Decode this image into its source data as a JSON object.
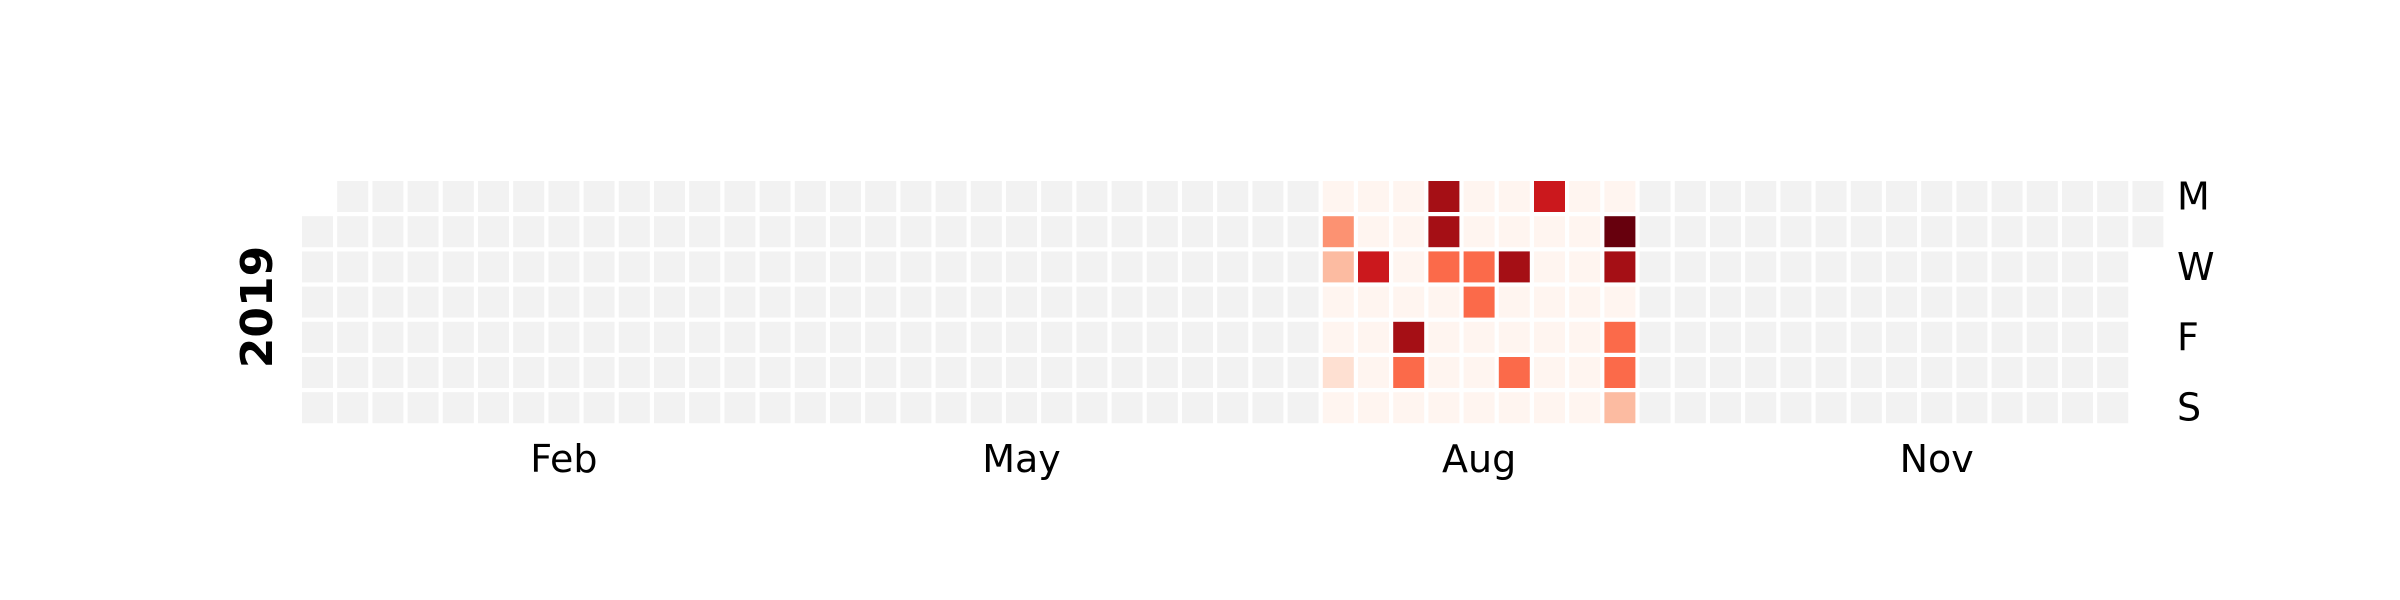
{
  "chart_data": {
    "type": "heatmap",
    "year_label": "2019",
    "month_labels": [
      {
        "label": "Feb",
        "week": 7
      },
      {
        "label": "May",
        "week": 20
      },
      {
        "label": "Aug",
        "week": 33
      },
      {
        "label": "Nov",
        "week": 46
      }
    ],
    "weekday_labels": [
      {
        "label": "M",
        "day": 0
      },
      {
        "label": "W",
        "day": 2
      },
      {
        "label": "F",
        "day": 4
      },
      {
        "label": "S",
        "day": 6
      }
    ],
    "n_weeks": 53,
    "first_week_start_day": 1,
    "last_week_end_day": 1,
    "colors": {
      "empty": "#f2f2f2",
      "scale": [
        "#fff5f0",
        "#fee0d2",
        "#fcbba1",
        "#fc9272",
        "#fb6a4a",
        "#ef3b2c",
        "#cb181d",
        "#a50f15",
        "#67000d"
      ]
    },
    "active_weeks": [
      29,
      30,
      31,
      32,
      33,
      34,
      35,
      36,
      37
    ],
    "values": [
      {
        "week": 29,
        "day": 1,
        "value": 3
      },
      {
        "week": 29,
        "day": 2,
        "value": 2
      },
      {
        "week": 29,
        "day": 5,
        "value": 1
      },
      {
        "week": 30,
        "day": 2,
        "value": 6
      },
      {
        "week": 31,
        "day": 4,
        "value": 7
      },
      {
        "week": 31,
        "day": 5,
        "value": 4
      },
      {
        "week": 32,
        "day": 0,
        "value": 7
      },
      {
        "week": 32,
        "day": 1,
        "value": 7
      },
      {
        "week": 32,
        "day": 2,
        "value": 4
      },
      {
        "week": 33,
        "day": 2,
        "value": 4
      },
      {
        "week": 33,
        "day": 3,
        "value": 4
      },
      {
        "week": 34,
        "day": 2,
        "value": 7
      },
      {
        "week": 34,
        "day": 5,
        "value": 4
      },
      {
        "week": 35,
        "day": 0,
        "value": 6
      },
      {
        "week": 37,
        "day": 1,
        "value": 8
      },
      {
        "week": 37,
        "day": 2,
        "value": 7
      },
      {
        "week": 37,
        "day": 4,
        "value": 4
      },
      {
        "week": 37,
        "day": 5,
        "value": 4
      },
      {
        "week": 37,
        "day": 6,
        "value": 2
      }
    ]
  }
}
